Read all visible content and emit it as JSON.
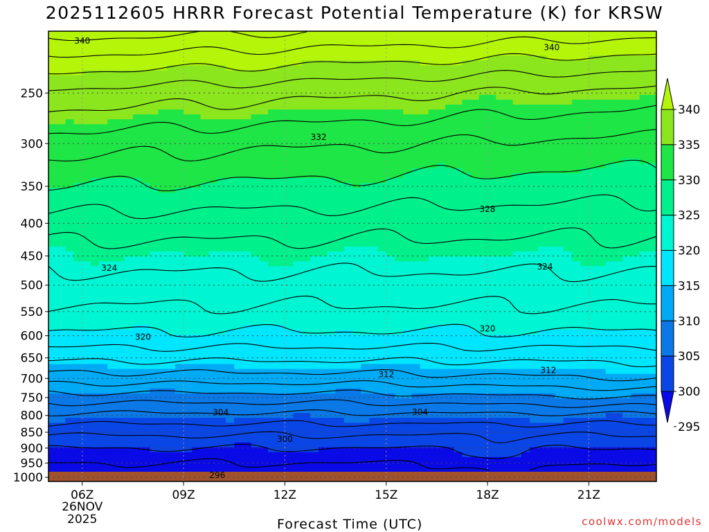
{
  "title": "2025112605 HRRR Forecast Potential Temperature (K) for KRSW",
  "credit": "coolwx.com/models",
  "chart_data": {
    "type": "contour",
    "xlabel": "Forecast Time (UTC)",
    "x_ticks": [
      "06Z",
      "09Z",
      "12Z",
      "15Z",
      "18Z",
      "21Z"
    ],
    "x_tick_hours": [
      6,
      9,
      12,
      15,
      18,
      21
    ],
    "x_date_label": [
      "26NOV",
      "2025"
    ],
    "xlim_hours": [
      5,
      23
    ],
    "y_ticks": [
      250,
      300,
      350,
      400,
      450,
      500,
      550,
      600,
      650,
      700,
      750,
      800,
      850,
      900,
      950,
      1000
    ],
    "ylim_hpa": [
      1015,
      200
    ],
    "colorbar_labels": [
      340,
      335,
      330,
      325,
      320,
      315,
      310,
      305,
      300,
      295
    ],
    "fill_bands": [
      {
        "min": 290,
        "max": 300,
        "color": "#0a0ae6"
      },
      {
        "min": 300,
        "max": 305,
        "color": "#0a46e6"
      },
      {
        "min": 305,
        "max": 310,
        "color": "#0a78e6"
      },
      {
        "min": 310,
        "max": 315,
        "color": "#00aaf5"
      },
      {
        "min": 315,
        "max": 320,
        "color": "#00e6ff"
      },
      {
        "min": 320,
        "max": 325,
        "color": "#00f5d2"
      },
      {
        "min": 325,
        "max": 330,
        "color": "#00f08c"
      },
      {
        "min": 330,
        "max": 335,
        "color": "#1ee646"
      },
      {
        "min": 335,
        "max": 340,
        "color": "#8ce61e"
      },
      {
        "min": 340,
        "max": 350,
        "color": "#b4f50a"
      }
    ],
    "ground_color": "#a0522d",
    "contour_interval_k": 2,
    "contour_labels": [
      {
        "value": 340,
        "hour": 6.0,
        "p": 207
      },
      {
        "value": 340,
        "hour": 19.9,
        "p": 212
      },
      {
        "value": 332,
        "hour": 13.0,
        "p": 293
      },
      {
        "value": 328,
        "hour": 18.0,
        "p": 380
      },
      {
        "value": 324,
        "hour": 6.8,
        "p": 470
      },
      {
        "value": 324,
        "hour": 19.7,
        "p": 468
      },
      {
        "value": 320,
        "hour": 7.8,
        "p": 603
      },
      {
        "value": 320,
        "hour": 18.0,
        "p": 585
      },
      {
        "value": 312,
        "hour": 15.0,
        "p": 690
      },
      {
        "value": 312,
        "hour": 19.8,
        "p": 680
      },
      {
        "value": 304,
        "hour": 10.1,
        "p": 792
      },
      {
        "value": 304,
        "hour": 16.0,
        "p": 791
      },
      {
        "value": 300,
        "hour": 12.0,
        "p": 872
      },
      {
        "value": 296,
        "hour": 10.0,
        "p": 993
      }
    ]
  }
}
